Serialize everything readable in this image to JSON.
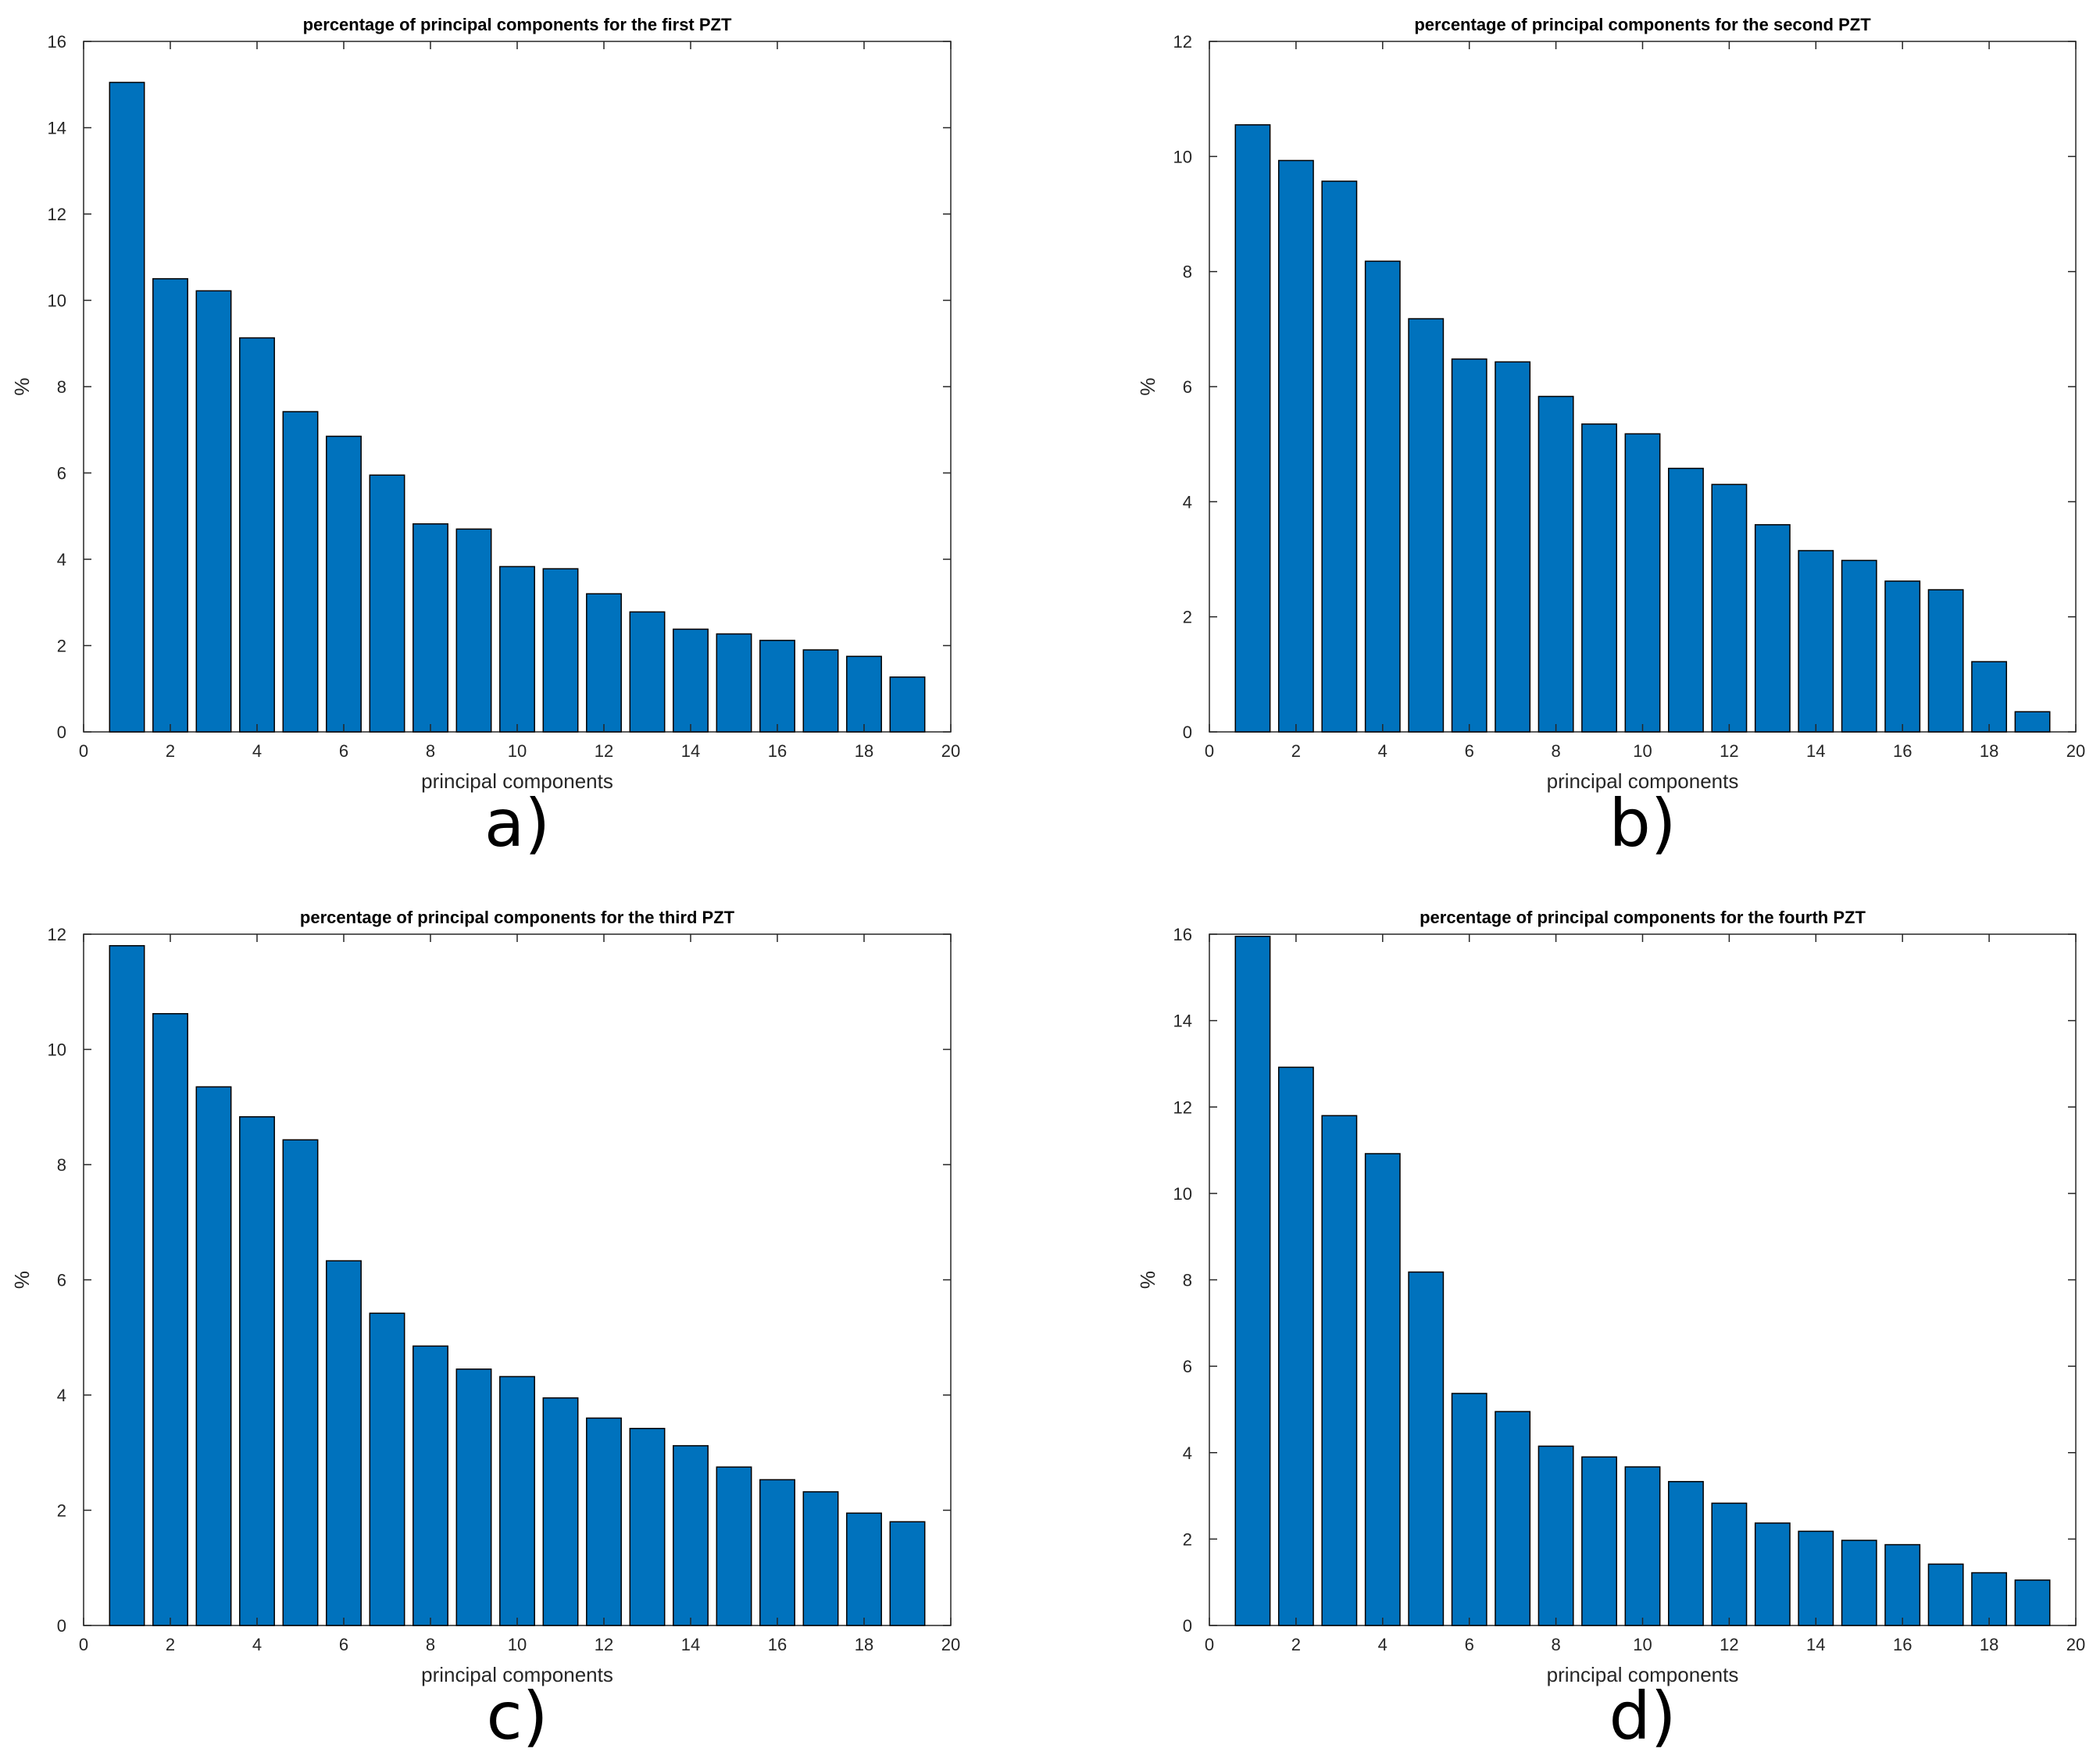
{
  "chart_data": [
    {
      "type": "bar",
      "title": "percentage of principal components for the first PZT",
      "xlabel": "principal components",
      "ylabel": "%",
      "panel_label": "a)",
      "xlim": [
        0,
        20
      ],
      "ylim": [
        0,
        16
      ],
      "xticks": [
        "0",
        "2",
        "4",
        "6",
        "8",
        "10",
        "12",
        "14",
        "16",
        "18",
        "20"
      ],
      "yticks": [
        "0",
        "2",
        "4",
        "6",
        "8",
        "10",
        "12",
        "14",
        "16"
      ],
      "categories": [
        1,
        2,
        3,
        4,
        5,
        6,
        7,
        8,
        9,
        10,
        11,
        12,
        13,
        14,
        15,
        16,
        17,
        18,
        19
      ],
      "values": [
        15.05,
        10.5,
        10.22,
        9.13,
        7.42,
        6.85,
        5.95,
        4.82,
        4.7,
        3.83,
        3.78,
        3.2,
        2.78,
        2.38,
        2.27,
        2.12,
        1.9,
        1.75,
        1.27
      ],
      "color": "#0072bd"
    },
    {
      "type": "bar",
      "title": "percentage of principal components for the second PZT",
      "xlabel": "principal components",
      "ylabel": "%",
      "panel_label": "b)",
      "xlim": [
        0,
        20
      ],
      "ylim": [
        0,
        12
      ],
      "xticks": [
        "0",
        "2",
        "4",
        "6",
        "8",
        "10",
        "12",
        "14",
        "16",
        "18",
        "20"
      ],
      "yticks": [
        "0",
        "2",
        "4",
        "6",
        "8",
        "10",
        "12"
      ],
      "categories": [
        1,
        2,
        3,
        4,
        5,
        6,
        7,
        8,
        9,
        10,
        11,
        12,
        13,
        14,
        15,
        16,
        17,
        18,
        19
      ],
      "values": [
        10.55,
        9.93,
        9.57,
        8.18,
        7.18,
        6.48,
        6.43,
        5.83,
        5.35,
        5.18,
        4.58,
        4.3,
        3.6,
        3.15,
        2.98,
        2.62,
        2.47,
        1.22,
        0.35
      ],
      "color": "#0072bd"
    },
    {
      "type": "bar",
      "title": "percentage of principal components for the third PZT",
      "xlabel": "principal components",
      "ylabel": "%",
      "panel_label": "c)",
      "xlim": [
        0,
        20
      ],
      "ylim": [
        0,
        12
      ],
      "xticks": [
        "0",
        "2",
        "4",
        "6",
        "8",
        "10",
        "12",
        "14",
        "16",
        "18",
        "20"
      ],
      "yticks": [
        "0",
        "2",
        "4",
        "6",
        "8",
        "10",
        "12"
      ],
      "categories": [
        1,
        2,
        3,
        4,
        5,
        6,
        7,
        8,
        9,
        10,
        11,
        12,
        13,
        14,
        15,
        16,
        17,
        18,
        19
      ],
      "values": [
        11.8,
        10.62,
        9.35,
        8.83,
        8.43,
        6.33,
        5.42,
        4.85,
        4.45,
        4.32,
        3.95,
        3.6,
        3.42,
        3.12,
        2.75,
        2.53,
        2.32,
        1.95,
        1.8
      ],
      "color": "#0072bd"
    },
    {
      "type": "bar",
      "title": "percentage of principal components for the fourth PZT",
      "xlabel": "principal components",
      "ylabel": "%",
      "panel_label": "d)",
      "xlim": [
        0,
        20
      ],
      "ylim": [
        0,
        16
      ],
      "xticks": [
        "0",
        "2",
        "4",
        "6",
        "8",
        "10",
        "12",
        "14",
        "16",
        "18",
        "20"
      ],
      "yticks": [
        "0",
        "2",
        "4",
        "6",
        "8",
        "10",
        "12",
        "14",
        "16"
      ],
      "categories": [
        1,
        2,
        3,
        4,
        5,
        6,
        7,
        8,
        9,
        10,
        11,
        12,
        13,
        14,
        15,
        16,
        17,
        18,
        19
      ],
      "values": [
        15.95,
        12.92,
        11.8,
        10.92,
        8.18,
        5.37,
        4.95,
        4.15,
        3.9,
        3.67,
        3.33,
        2.83,
        2.37,
        2.18,
        1.97,
        1.87,
        1.42,
        1.22,
        1.05
      ],
      "color": "#0072bd"
    }
  ]
}
